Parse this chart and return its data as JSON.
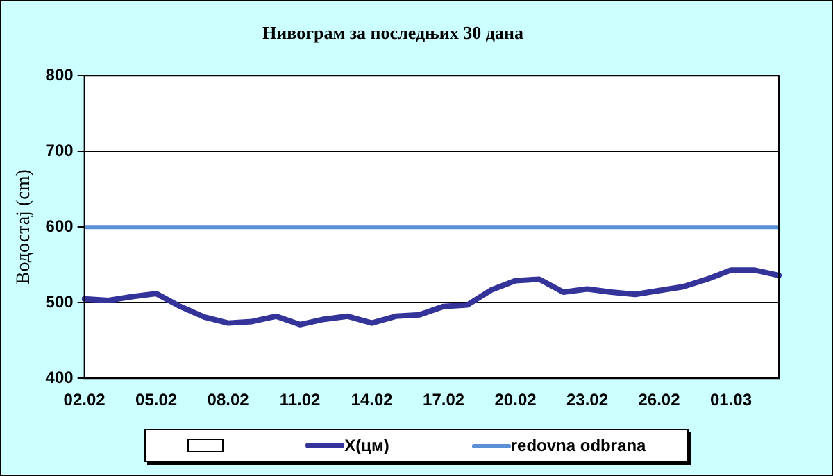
{
  "chart_data": {
    "type": "line",
    "title": "Нивограм за последњих 30 дана",
    "ylabel": "Водостај (cm)",
    "categories": [
      "02.02",
      null,
      null,
      "05.02",
      null,
      null,
      "08.02",
      null,
      null,
      "11.02",
      null,
      null,
      "14.02",
      null,
      null,
      "17.02",
      null,
      null,
      "20.02",
      null,
      null,
      "23.02",
      null,
      null,
      "26.02",
      null,
      null,
      "01.03",
      null,
      null
    ],
    "series": [
      {
        "name": "X(цм)",
        "color": "#333399",
        "values": [
          505,
          503,
          508,
          512,
          495,
          481,
          473,
          475,
          482,
          471,
          478,
          482,
          473,
          482,
          484,
          495,
          497,
          517,
          529,
          531,
          514,
          518,
          514,
          511,
          516,
          521,
          531,
          543,
          543,
          536
        ]
      }
    ],
    "ylim": [
      400,
      800
    ],
    "yticks": [
      400,
      500,
      600,
      700,
      800
    ],
    "grid": "y",
    "legend": "bottom",
    "marker": "none",
    "line_style": "solid",
    "ref_lines": [
      {
        "axis": "y",
        "value": 600,
        "label": "redovna odbrana",
        "color": "#5b8fd6"
      }
    ]
  }
}
